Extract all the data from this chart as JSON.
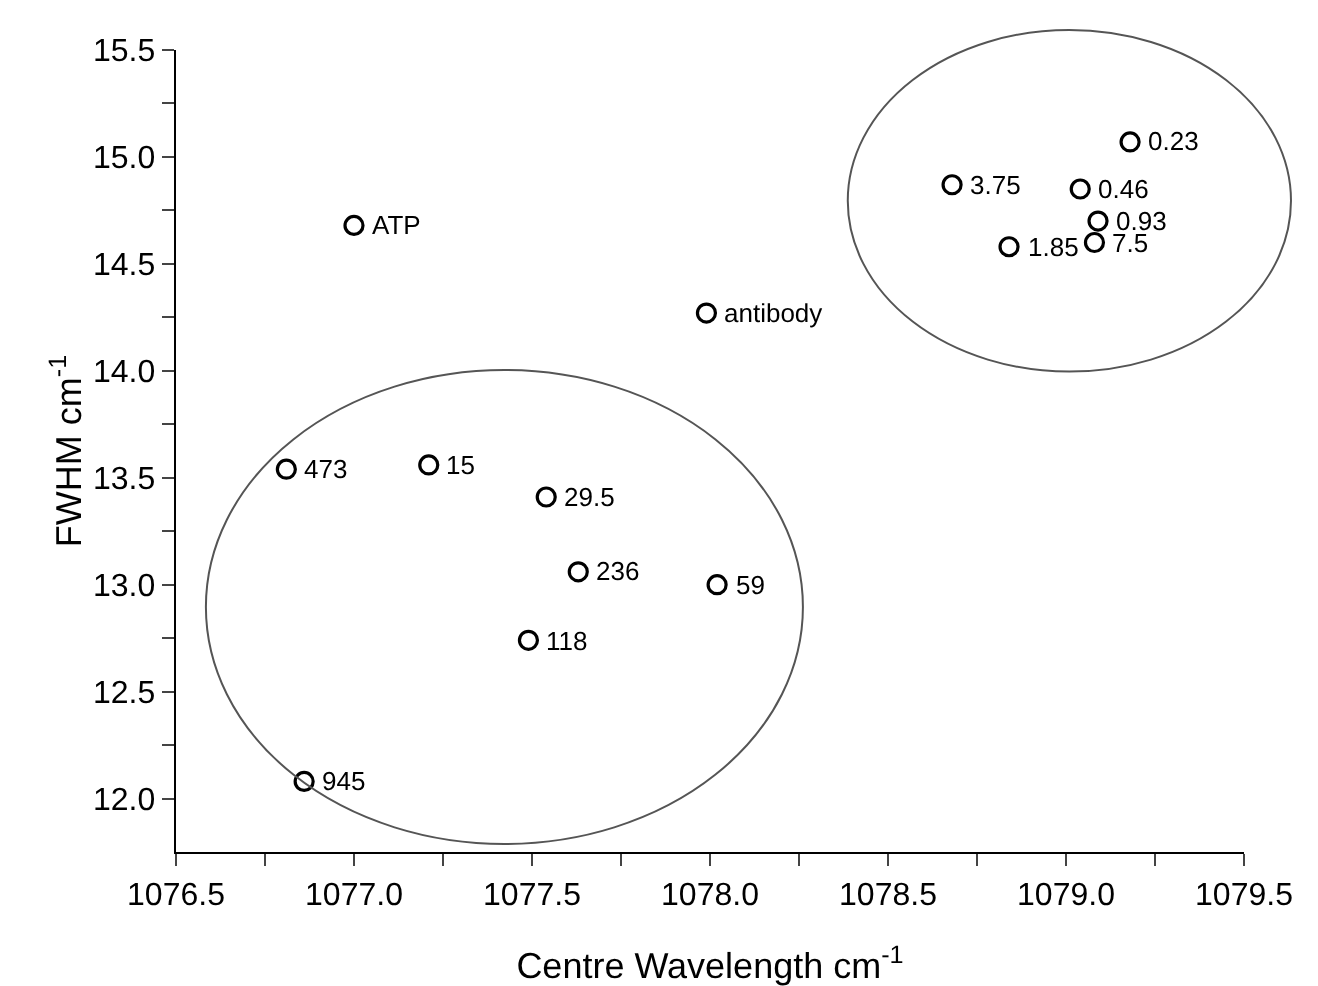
{
  "chart_data": {
    "type": "scatter",
    "xlabel": "Centre Wavelength cm$^{-1}$",
    "ylabel": "FWHM cm$^{-1}$",
    "x": [
      1077.0,
      1076.81,
      1077.21,
      1077.54,
      1077.63,
      1077.49,
      1076.86,
      1078.02,
      1077.99,
      1078.68,
      1079.18,
      1079.04,
      1079.09,
      1079.08,
      1078.84
    ],
    "values": [
      14.68,
      13.54,
      13.56,
      13.41,
      13.06,
      12.74,
      12.08,
      13.0,
      14.27,
      14.87,
      15.07,
      14.85,
      14.7,
      14.6,
      14.58
    ],
    "annotations": [
      {
        "text": "ATP",
        "x": 1077.0,
        "y": 14.68
      },
      {
        "text": "473",
        "x": 1076.81,
        "y": 13.54
      },
      {
        "text": "15",
        "x": 1077.21,
        "y": 13.56
      },
      {
        "text": "29.5",
        "x": 1077.54,
        "y": 13.41
      },
      {
        "text": "236",
        "x": 1077.63,
        "y": 13.06
      },
      {
        "text": "118",
        "x": 1077.49,
        "y": 12.74
      },
      {
        "text": "945",
        "x": 1076.86,
        "y": 12.08
      },
      {
        "text": "59",
        "x": 1078.02,
        "y": 13.0
      },
      {
        "text": "antibody",
        "x": 1077.99,
        "y": 14.27
      },
      {
        "text": "3.75",
        "x": 1078.68,
        "y": 14.87
      },
      {
        "text": "0.23",
        "x": 1079.18,
        "y": 15.07
      },
      {
        "text": "0.46",
        "x": 1079.04,
        "y": 14.85
      },
      {
        "text": "0.93",
        "x": 1079.09,
        "y": 14.7
      },
      {
        "text": "7.5",
        "x": 1079.08,
        "y": 14.6
      },
      {
        "text": "1.85",
        "x": 1078.84,
        "y": 14.58
      }
    ],
    "color": "#000000",
    "marker": "circle",
    "xlim": [
      1076.5,
      1079.5
    ],
    "xticks": [
      1076.5,
      {
        "value": 1076.75,
        "label": null
      },
      "1077.0",
      {
        "value": 1077.25,
        "label": null
      },
      1077.5,
      {
        "value": 1077.75,
        "label": null
      },
      "1078.0",
      {
        "value": 1078.25,
        "label": null
      },
      1078.5,
      {
        "value": 1078.75,
        "label": null
      },
      "1079.0",
      {
        "value": 1079.25,
        "label": null
      },
      1079.5
    ],
    "ylim": [
      11.75,
      15.5
    ],
    "yticks": [
      {
        "value": 12.0,
        "label": "12.0"
      },
      {
        "value": 12.25,
        "label": null
      },
      12.5,
      {
        "value": 12.75,
        "label": null
      },
      {
        "value": 13.0,
        "label": "13.0"
      },
      {
        "value": 13.25,
        "label": null
      },
      13.5,
      {
        "value": 13.75,
        "label": null
      },
      {
        "value": 14.0,
        "label": "14.0"
      },
      {
        "value": 14.25,
        "label": null
      },
      14.5,
      {
        "value": 14.75,
        "label": null
      },
      {
        "value": 15.0,
        "label": "15.0"
      },
      {
        "value": 15.25,
        "label": null
      },
      15.5
    ]
  }
}
